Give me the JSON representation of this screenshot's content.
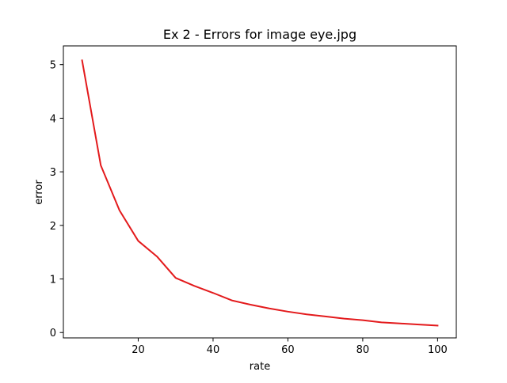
{
  "chart_data": {
    "type": "line",
    "title": "Ex 2 - Errors for image eye.jpg",
    "xlabel": "rate",
    "ylabel": "error",
    "xlim": [
      0,
      105
    ],
    "ylim": [
      -0.1,
      5.35
    ],
    "xticks": [
      20,
      40,
      60,
      80,
      100
    ],
    "yticks": [
      0,
      1,
      2,
      3,
      4,
      5
    ],
    "grid": false,
    "legend": "none",
    "series": [
      {
        "color": "#e31a1c",
        "x": [
          5,
          10,
          15,
          20,
          25,
          30,
          35,
          40,
          45,
          50,
          55,
          60,
          65,
          70,
          75,
          80,
          85,
          90,
          95,
          100
        ],
        "y": [
          5.08,
          3.12,
          2.28,
          1.71,
          1.42,
          1.02,
          0.87,
          0.74,
          0.6,
          0.52,
          0.45,
          0.39,
          0.34,
          0.3,
          0.26,
          0.23,
          0.19,
          0.17,
          0.15,
          0.13
        ]
      }
    ]
  }
}
